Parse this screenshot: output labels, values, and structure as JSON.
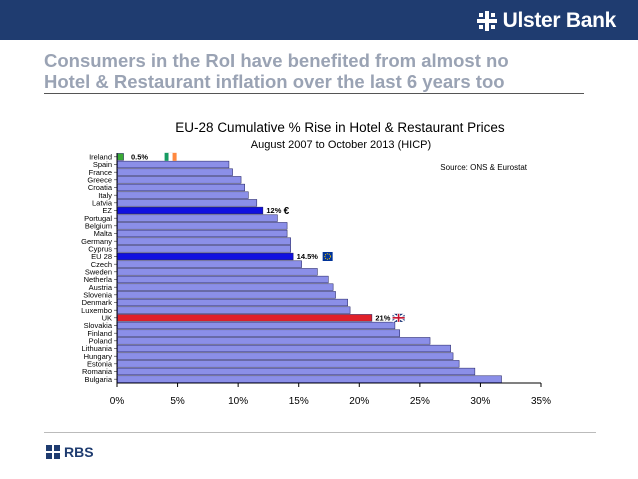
{
  "brand": {
    "name": "Ulster Bank",
    "footer_logo": "RBS",
    "color": "#1f3c70"
  },
  "headline": {
    "line1": "Consumers in the RoI have benefited from almost no",
    "line2": "Hotel & Restaurant inflation over the last 6 years too"
  },
  "chart_data": {
    "type": "bar",
    "orientation": "horizontal",
    "title": "EU-28 Cumulative % Rise in Hotel & Restaurant Prices",
    "subtitle": "August 2007 to October 2013 (HICP)",
    "source": "Source: ONS & Eurostat",
    "xlim": [
      0,
      35
    ],
    "xticks": [
      0,
      5,
      10,
      15,
      20,
      25,
      30,
      35
    ],
    "tick_suffix": "%",
    "categories": [
      "Ireland",
      "Spain",
      "France",
      "Greece",
      "Croatia",
      "Italy",
      "Latvia",
      "EZ",
      "Portugal",
      "Belgium",
      "Malta",
      "Germany",
      "Cyprus",
      "EU 28",
      "Czech",
      "Sweden",
      "Netherla",
      "Austria",
      "Slovenia",
      "Denmark",
      "Luxembo",
      "UK",
      "Slovakia",
      "Finland",
      "Poland",
      "Lithuania",
      "Hungary",
      "Estonia",
      "Romania",
      "Bulgaria"
    ],
    "values": [
      0.5,
      9.2,
      9.5,
      10.2,
      10.5,
      10.8,
      11.5,
      12.0,
      13.2,
      14.0,
      14.0,
      14.3,
      14.3,
      14.5,
      15.2,
      16.5,
      17.4,
      17.8,
      18.0,
      19.0,
      19.2,
      21.0,
      22.9,
      23.3,
      25.8,
      27.5,
      27.7,
      28.2,
      29.5,
      31.7
    ],
    "colors": {
      "default": "#8b8fe8",
      "ireland": "#3aaa35",
      "eurozone": "#1010e0",
      "uk": "#e0202a"
    },
    "highlights": [
      "Ireland",
      "EZ",
      "EU 28",
      "UK"
    ],
    "annotations": [
      {
        "category": "Ireland",
        "label": "0.5%",
        "icon": "ireland-flag-icon"
      },
      {
        "category": "EZ",
        "label": "12%",
        "icon": "euro-sign-icon",
        "icon_text": "€"
      },
      {
        "category": "EU 28",
        "label": "14.5%",
        "icon": "eu-flag-icon"
      },
      {
        "category": "UK",
        "label": "21%",
        "icon": "uk-flag-icon"
      }
    ]
  }
}
